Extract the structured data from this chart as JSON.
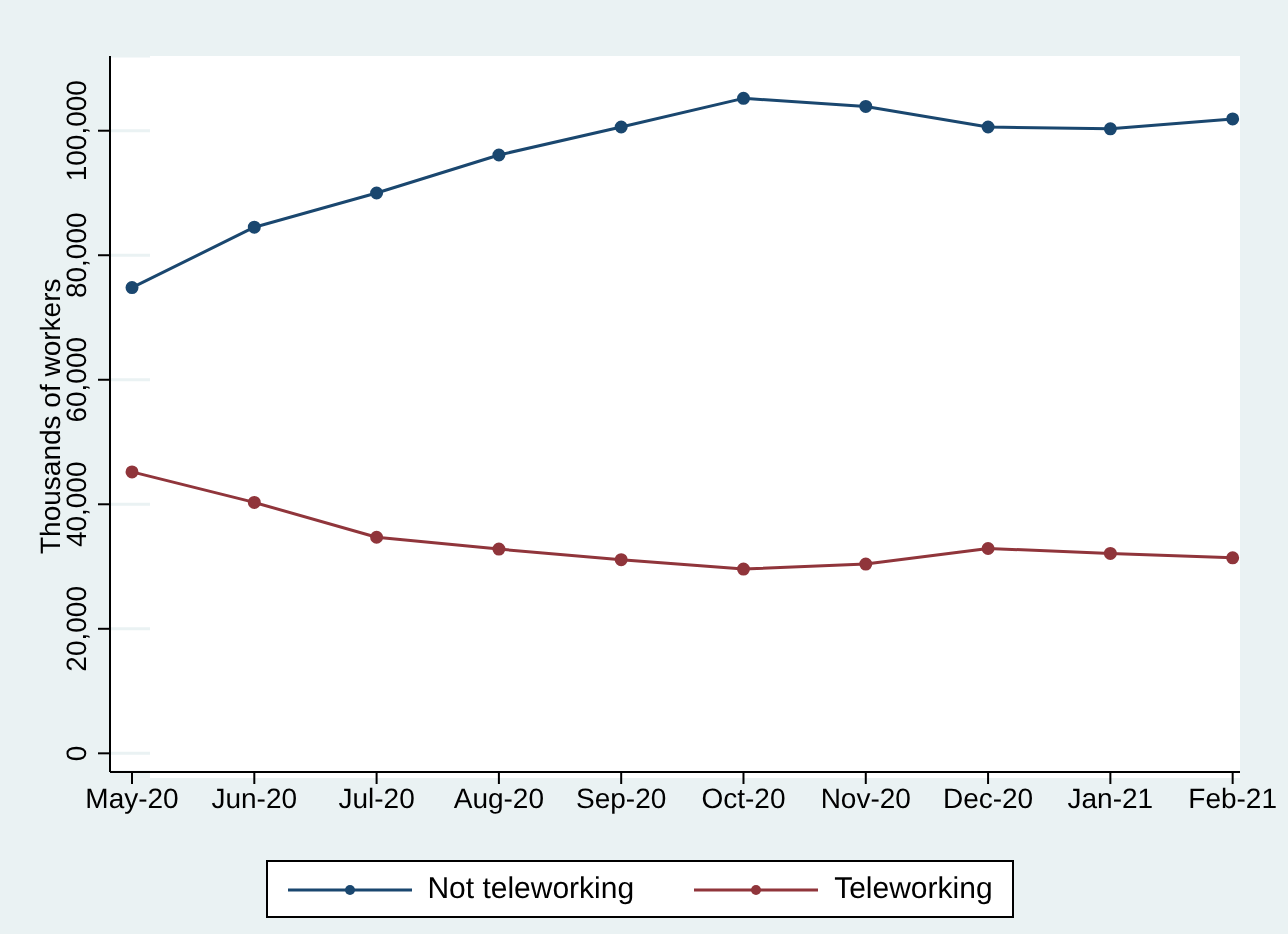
{
  "chart_data": {
    "type": "line",
    "ylabel": "Thousands of workers",
    "categories": [
      "May-20",
      "Jun-20",
      "Jul-20",
      "Aug-20",
      "Sep-20",
      "Oct-20",
      "Nov-20",
      "Dec-20",
      "Jan-21",
      "Feb-21"
    ],
    "series": [
      {
        "name": "Not teleworking",
        "color": "#1a476f",
        "values": [
          74800,
          84500,
          90000,
          96100,
          100600,
          105200,
          103900,
          100600,
          100300,
          101900
        ]
      },
      {
        "name": "Teleworking",
        "color": "#90353b",
        "values": [
          45200,
          40300,
          34700,
          32800,
          31100,
          29600,
          30400,
          32900,
          32100,
          31400
        ]
      }
    ],
    "ylim": [
      -3000,
      112000
    ],
    "yticks": [
      0,
      {
        "value": 20000,
        "label": "20,000"
      },
      {
        "value": 40000,
        "label": "40,000"
      },
      {
        "value": 60000,
        "label": "60,000"
      },
      {
        "value": 80000,
        "label": "80,000"
      },
      {
        "value": 100000,
        "label": "100,000"
      }
    ],
    "grid": "y",
    "legend": "bottom",
    "marker": "circle",
    "line_style": "solid"
  }
}
